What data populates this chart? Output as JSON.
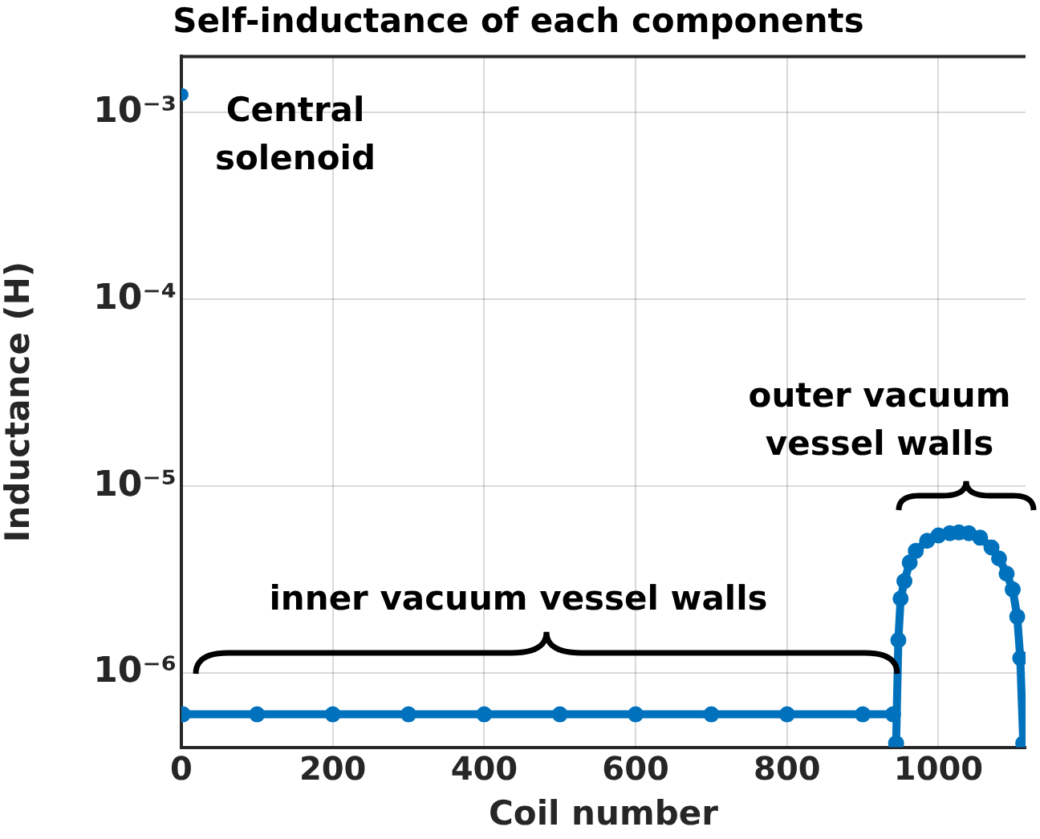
{
  "chart_data": {
    "type": "scatter",
    "title": "Self-inductance of each components",
    "xlabel": "Coil number",
    "ylabel": "Inductance (H)",
    "log": "y",
    "grid": true,
    "legend": false,
    "marker": "circle",
    "xlim": [
      0,
      1115
    ],
    "xticks": [
      0,
      200,
      400,
      600,
      800,
      1000
    ],
    "ylim": [
      4e-07,
      0.002
    ],
    "yticks": [
      {
        "value": 1e-06,
        "label": "10⁻⁶"
      },
      {
        "value": 1e-05,
        "label": "10⁻⁵"
      },
      {
        "value": 0.0001,
        "label": "10⁻⁴"
      },
      {
        "value": 0.001,
        "label": "10⁻³"
      }
    ],
    "series": [
      {
        "color": "#0072bd",
        "x": [
          1
        ],
        "values": [
          0.00125
        ]
      },
      {
        "type": "line",
        "color": "#0072bd",
        "x": [
          2,
          100,
          200,
          300,
          400,
          500,
          600,
          700,
          800,
          900,
          940
        ],
        "values": [
          6e-07,
          6e-07,
          6e-07,
          6e-07,
          6e-07,
          6e-07,
          6e-07,
          6e-07,
          6e-07,
          6e-07,
          6e-07
        ]
      },
      {
        "type": "line",
        "color": "#0072bd",
        "x": [
          944,
          947,
          950,
          955,
          962,
          970,
          985,
          1000,
          1015,
          1027,
          1040,
          1055,
          1070,
          1080,
          1090,
          1098,
          1104,
          1108,
          1112
        ],
        "values": [
          4.2e-07,
          1.5e-06,
          2.5e-06,
          3.1e-06,
          3.9e-06,
          4.5e-06,
          5.1e-06,
          5.45e-06,
          5.6e-06,
          5.65e-06,
          5.6e-06,
          5.3e-06,
          4.7e-06,
          4.1e-06,
          3.4e-06,
          2.8e-06,
          2e-06,
          1.2e-06,
          4.2e-07
        ]
      }
    ],
    "annotations": [
      "Central solenoid",
      "inner vacuum vessel walls",
      "outer vacuum vessel walls"
    ]
  }
}
